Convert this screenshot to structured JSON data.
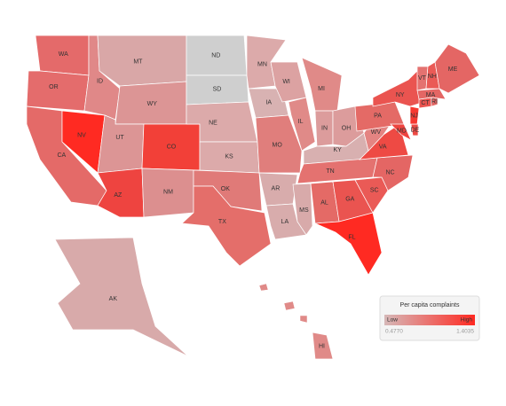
{
  "map": {
    "states": [
      {
        "label": "WA",
        "color": "#e46a6a"
      },
      {
        "label": "OR",
        "color": "#e46c6c"
      },
      {
        "label": "CA",
        "color": "#e46a68"
      },
      {
        "label": "NV",
        "color": "#ff2a22"
      },
      {
        "label": "ID",
        "color": "#e08888"
      },
      {
        "label": "MT",
        "color": "#d9a7a7"
      },
      {
        "label": "WY",
        "color": "#dc9595"
      },
      {
        "label": "UT",
        "color": "#dc9595"
      },
      {
        "label": "CO",
        "color": "#f24038"
      },
      {
        "label": "AZ",
        "color": "#ee4440"
      },
      {
        "label": "NM",
        "color": "#dc8f8f"
      },
      {
        "label": "ND",
        "color": "#cfcfcf"
      },
      {
        "label": "SD",
        "color": "#cfcfcf"
      },
      {
        "label": "NE",
        "color": "#dcaaaa"
      },
      {
        "label": "KS",
        "color": "#dcaaaa"
      },
      {
        "label": "OK",
        "color": "#e07a78"
      },
      {
        "label": "TX",
        "color": "#e46e6a"
      },
      {
        "label": "MN",
        "color": "#dcaaaa"
      },
      {
        "label": "IA",
        "color": "#d8b2b2"
      },
      {
        "label": "MO",
        "color": "#e07e7c"
      },
      {
        "label": "AR",
        "color": "#d8acac"
      },
      {
        "label": "LA",
        "color": "#d8acac"
      },
      {
        "label": "WI",
        "color": "#dca2a2"
      },
      {
        "label": "IL",
        "color": "#e08a88"
      },
      {
        "label": "MI",
        "color": "#e08a88"
      },
      {
        "label": "IN",
        "color": "#dc9c9c"
      },
      {
        "label": "OH",
        "color": "#dc9c9c"
      },
      {
        "label": "KY",
        "color": "#d8b0b0"
      },
      {
        "label": "TN",
        "color": "#e47270"
      },
      {
        "label": "MS",
        "color": "#d8aaaa"
      },
      {
        "label": "AL",
        "color": "#e46a66"
      },
      {
        "label": "GA",
        "color": "#ea5450"
      },
      {
        "label": "FL",
        "color": "#ff2a22"
      },
      {
        "label": "SC",
        "color": "#ea5a56"
      },
      {
        "label": "NC",
        "color": "#e46664"
      },
      {
        "label": "VA",
        "color": "#ee4a44"
      },
      {
        "label": "WV",
        "color": "#e48482"
      },
      {
        "label": "PA",
        "color": "#e46a66"
      },
      {
        "label": "NY",
        "color": "#ea5450"
      },
      {
        "label": "MD",
        "color": "#ee4440"
      },
      {
        "label": "DE",
        "color": "#ee4a44"
      },
      {
        "label": "NJ",
        "color": "#f63830"
      },
      {
        "label": "CT",
        "color": "#ea5450"
      },
      {
        "label": "RI",
        "color": "#e46664"
      },
      {
        "label": "MA",
        "color": "#e46664"
      },
      {
        "label": "VT",
        "color": "#e47270"
      },
      {
        "label": "NH",
        "color": "#ea5a56"
      },
      {
        "label": "ME",
        "color": "#e46664"
      },
      {
        "label": "AK",
        "color": "#d8aaaa"
      },
      {
        "label": "HI",
        "color": "#e08a88"
      }
    ]
  },
  "legend": {
    "title": "Per capita complaints",
    "low": "Low",
    "high": "High",
    "min": "0.4770",
    "max": "1.4035",
    "low_color": "#d6b8b8",
    "high_color": "#ff2a22"
  }
}
